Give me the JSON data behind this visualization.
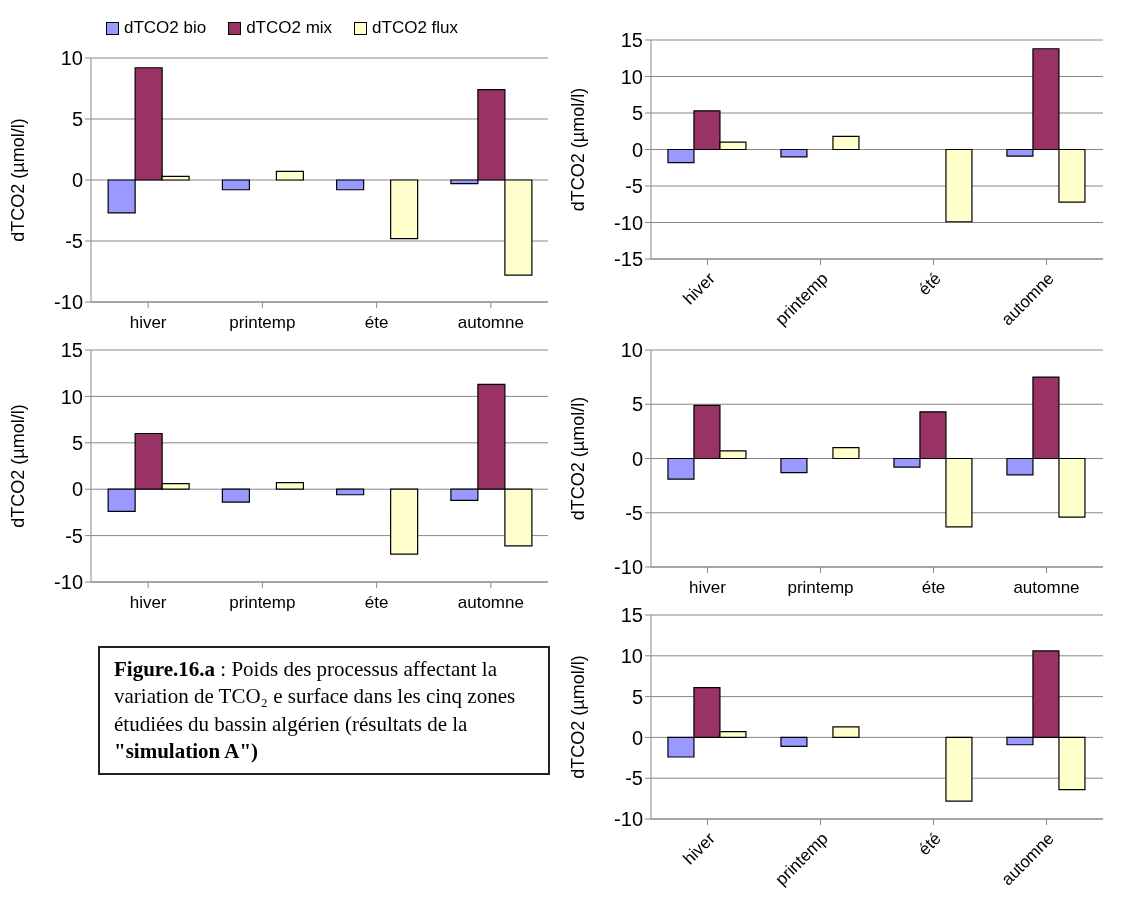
{
  "chart_data": [
    {
      "type": "bar",
      "categories": [
        "hiver",
        "printemp",
        "éte",
        "automne"
      ],
      "ylabel": "dTCO2 (µmol/l)",
      "ylim": [
        -10,
        10
      ],
      "yticks": [
        -10,
        -5,
        0,
        5,
        10
      ],
      "grid": "y",
      "legend": "top",
      "series": [
        {
          "name": "dTCO2 bio",
          "color": "#9999ff",
          "values": [
            -2.7,
            -0.8,
            -0.8,
            -0.3
          ]
        },
        {
          "name": "dTCO2 mix",
          "color": "#993366",
          "values": [
            9.2,
            null,
            null,
            7.4
          ]
        },
        {
          "name": "dTCO2 flux",
          "color": "#ffffcc",
          "values": [
            0.3,
            0.7,
            -4.8,
            -7.8
          ]
        }
      ]
    },
    {
      "type": "bar",
      "categories": [
        "hiver",
        "printemp",
        "été",
        "automne"
      ],
      "ylabel": "dTCO2 (µmol/l)",
      "ylim": [
        -15,
        15
      ],
      "yticks": [
        -15,
        -10,
        -5,
        0,
        5,
        10,
        15
      ],
      "grid": "y",
      "series": [
        {
          "color": "#9999ff",
          "values": [
            -1.8,
            -1.0,
            null,
            -0.9
          ]
        },
        {
          "color": "#993366",
          "values": [
            5.3,
            null,
            null,
            13.8
          ]
        },
        {
          "color": "#ffffcc",
          "values": [
            1.0,
            1.8,
            -9.9,
            -7.2
          ]
        }
      ]
    },
    {
      "type": "bar",
      "categories": [
        "hiver",
        "printemp",
        "éte",
        "automne"
      ],
      "ylabel": "dTCO2 (µmol/l)",
      "ylim": [
        -10,
        15
      ],
      "yticks": [
        -10,
        -5,
        0,
        5,
        10,
        15
      ],
      "grid": "y",
      "annotations": [
        "Figure.16.a",
        " : Poids des processus affectant la variation de TCO₂ e surface dans les cinq zones étudiées du bassin algérien (résultats de la ",
        "\"simulation A\")"
      ],
      "series": [
        {
          "color": "#9999ff",
          "values": [
            -2.4,
            -1.4,
            -0.6,
            -1.2
          ]
        },
        {
          "color": "#993366",
          "values": [
            6.0,
            null,
            null,
            11.3
          ]
        },
        {
          "color": "#ffffcc",
          "values": [
            0.6,
            0.7,
            -7.0,
            -6.1
          ]
        }
      ]
    },
    {
      "type": "bar",
      "categories": [
        "hiver",
        "printemp",
        "éte",
        "automne"
      ],
      "ylabel": "dTCO2 (µmol/l)",
      "ylim": [
        -10,
        10
      ],
      "yticks": [
        -10,
        -5,
        0,
        5,
        10
      ],
      "grid": "y",
      "series": [
        {
          "color": "#9999ff",
          "values": [
            -1.9,
            -1.3,
            -0.8,
            -1.5
          ]
        },
        {
          "color": "#993366",
          "values": [
            4.9,
            null,
            4.3,
            7.5
          ]
        },
        {
          "color": "#ffffcc",
          "values": [
            0.7,
            1.0,
            -6.3,
            -5.4
          ]
        }
      ]
    },
    {
      "type": "bar",
      "categories": [
        "hiver",
        "printemp",
        "été",
        "automne"
      ],
      "ylabel": "dTCO2 (µmol/l)",
      "ylim": [
        -10,
        15
      ],
      "yticks": [
        -10,
        -5,
        0,
        5,
        10,
        15
      ],
      "grid": "y",
      "series": [
        {
          "color": "#9999ff",
          "values": [
            -2.4,
            -1.1,
            null,
            -0.9
          ]
        },
        {
          "color": "#993366",
          "values": [
            6.1,
            null,
            null,
            10.6
          ]
        },
        {
          "color": "#ffffcc",
          "values": [
            0.7,
            1.3,
            -7.8,
            -6.4
          ]
        }
      ]
    }
  ]
}
